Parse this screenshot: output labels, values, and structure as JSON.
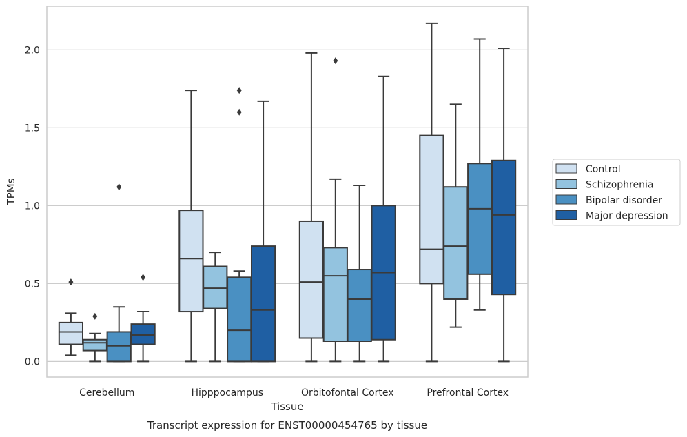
{
  "chart_data": {
    "type": "box",
    "title": "Transcript expression for ENST00000454765 by tissue",
    "xlabel": "Tissue",
    "ylabel": "TPMs",
    "ylim": [
      -0.1,
      2.28
    ],
    "yticks": [
      "0.0",
      "0.5",
      "1.0",
      "1.5",
      "2.0"
    ],
    "grid": "horizontal",
    "legend_position": "right",
    "categories": [
      "Cerebellum",
      "Hipppocampus",
      "Orbitofontal Cortex",
      "Prefrontal Cortex"
    ],
    "series": [
      {
        "name": "Control",
        "color": "#d0e1f1",
        "boxes": [
          {
            "whislo": 0.04,
            "q1": 0.11,
            "med": 0.19,
            "q3": 0.25,
            "whishi": 0.31,
            "fliers": [
              0.51
            ]
          },
          {
            "whislo": 0.0,
            "q1": 0.32,
            "med": 0.66,
            "q3": 0.97,
            "whishi": 1.74,
            "fliers": []
          },
          {
            "whislo": 0.0,
            "q1": 0.15,
            "med": 0.51,
            "q3": 0.9,
            "whishi": 1.98,
            "fliers": []
          },
          {
            "whislo": 0.0,
            "q1": 0.5,
            "med": 0.72,
            "q3": 1.45,
            "whishi": 2.17,
            "fliers": []
          }
        ]
      },
      {
        "name": "Schizophrenia",
        "color": "#93c3df",
        "boxes": [
          {
            "whislo": 0.0,
            "q1": 0.07,
            "med": 0.12,
            "q3": 0.14,
            "whishi": 0.18,
            "fliers": [
              0.29
            ]
          },
          {
            "whislo": 0.0,
            "q1": 0.34,
            "med": 0.47,
            "q3": 0.61,
            "whishi": 0.7,
            "fliers": []
          },
          {
            "whislo": 0.0,
            "q1": 0.13,
            "med": 0.55,
            "q3": 0.73,
            "whishi": 1.17,
            "fliers": [
              1.93
            ]
          },
          {
            "whislo": 0.22,
            "q1": 0.4,
            "med": 0.74,
            "q3": 1.12,
            "whishi": 1.65,
            "fliers": []
          }
        ]
      },
      {
        "name": "Bipolar disorder",
        "color": "#4a90c2",
        "boxes": [
          {
            "whislo": 0.0,
            "q1": 0.0,
            "med": 0.1,
            "q3": 0.19,
            "whishi": 0.35,
            "fliers": [
              1.12
            ]
          },
          {
            "whislo": 0.0,
            "q1": 0.0,
            "med": 0.2,
            "q3": 0.54,
            "whishi": 0.58,
            "fliers": [
              1.6,
              1.74
            ]
          },
          {
            "whislo": 0.0,
            "q1": 0.13,
            "med": 0.4,
            "q3": 0.59,
            "whishi": 1.13,
            "fliers": []
          },
          {
            "whislo": 0.33,
            "q1": 0.56,
            "med": 0.98,
            "q3": 1.27,
            "whishi": 2.07,
            "fliers": []
          }
        ]
      },
      {
        "name": "Major depression",
        "color": "#1f5fa3",
        "boxes": [
          {
            "whislo": 0.0,
            "q1": 0.11,
            "med": 0.17,
            "q3": 0.24,
            "whishi": 0.32,
            "fliers": [
              0.54
            ]
          },
          {
            "whislo": 0.0,
            "q1": 0.0,
            "med": 0.33,
            "q3": 0.74,
            "whishi": 1.67,
            "fliers": []
          },
          {
            "whislo": 0.0,
            "q1": 0.14,
            "med": 0.57,
            "q3": 1.0,
            "whishi": 1.83,
            "fliers": []
          },
          {
            "whislo": 0.0,
            "q1": 0.43,
            "med": 0.94,
            "q3": 1.29,
            "whishi": 2.01,
            "fliers": []
          }
        ]
      }
    ],
    "line_color": "#3a3a3a",
    "grid_color": "#cccccc",
    "frame_color": "#cccccc"
  }
}
